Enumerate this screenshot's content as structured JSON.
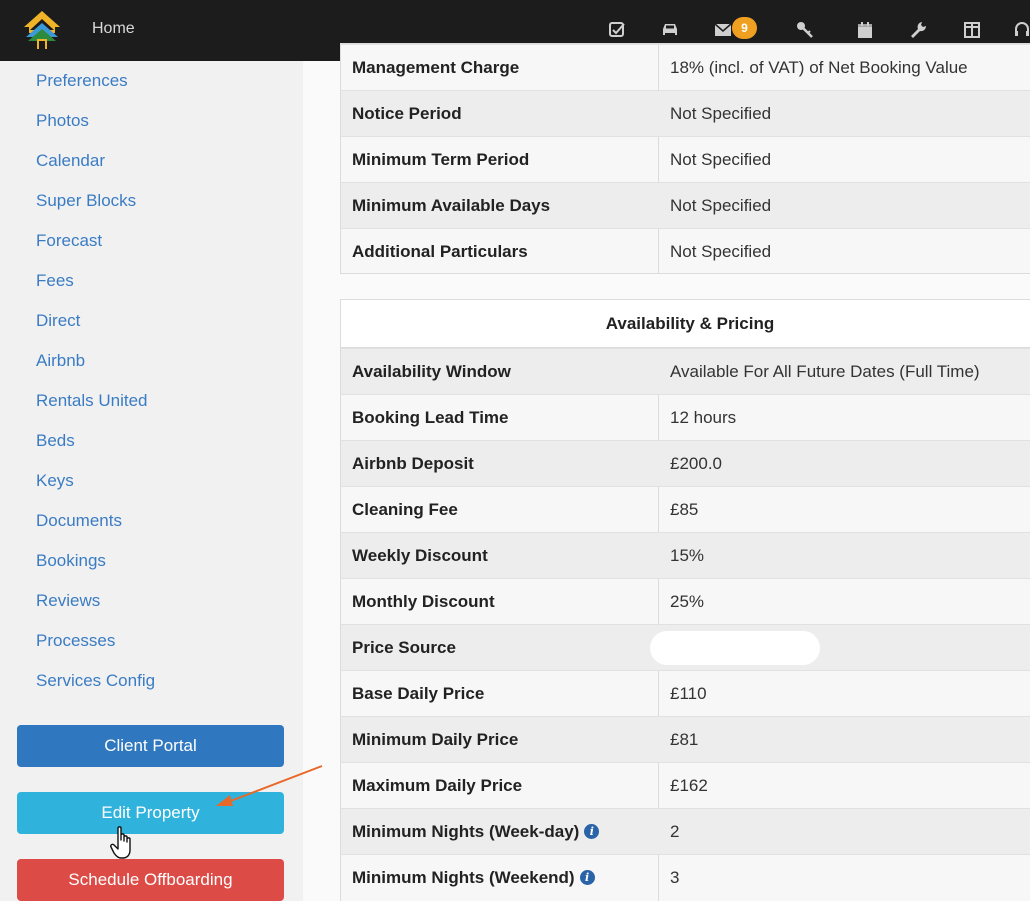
{
  "header": {
    "home_label": "Home",
    "mail_count": "9",
    "icons": [
      "checkbox-icon",
      "car-icon",
      "mail-icon",
      "keys-icon",
      "calendar-icon",
      "wrench-icon",
      "columns-icon",
      "headset-icon"
    ]
  },
  "sidebar": {
    "items": [
      {
        "label": "Preferences"
      },
      {
        "label": "Photos"
      },
      {
        "label": "Calendar"
      },
      {
        "label": "Super Blocks"
      },
      {
        "label": "Forecast"
      },
      {
        "label": "Fees"
      },
      {
        "label": "Direct"
      },
      {
        "label": "Airbnb"
      },
      {
        "label": "Rentals United"
      },
      {
        "label": "Beds"
      },
      {
        "label": "Keys"
      },
      {
        "label": "Documents"
      },
      {
        "label": "Bookings"
      },
      {
        "label": "Reviews"
      },
      {
        "label": "Processes"
      },
      {
        "label": "Services Config"
      }
    ],
    "client_portal_label": "Client Portal",
    "edit_property_label": "Edit Property",
    "schedule_offboarding_label": "Schedule Offboarding"
  },
  "terms_table": {
    "rows": [
      {
        "label": "Management Charge",
        "value": "18% (incl. of VAT) of Net Booking Value"
      },
      {
        "label": "Notice Period",
        "value": "Not Specified"
      },
      {
        "label": "Minimum Term Period",
        "value": "Not Specified"
      },
      {
        "label": "Minimum Available Days",
        "value": "Not Specified"
      },
      {
        "label": "Additional Particulars",
        "value": "Not Specified"
      }
    ]
  },
  "pricing_table": {
    "title": "Availability & Pricing",
    "rows": [
      {
        "label": "Availability Window",
        "value": "Available For All Future Dates (Full Time)"
      },
      {
        "label": "Booking Lead Time",
        "value": "12 hours"
      },
      {
        "label": "Airbnb Deposit",
        "value": "£200.0"
      },
      {
        "label": "Cleaning Fee",
        "value": "£85"
      },
      {
        "label": "Weekly Discount",
        "value": "15%"
      },
      {
        "label": "Monthly Discount",
        "value": "25%"
      },
      {
        "label": "Price Source",
        "value": ""
      },
      {
        "label": "Base Daily Price",
        "value": "£110"
      },
      {
        "label": "Minimum Daily Price",
        "value": "£81"
      },
      {
        "label": "Maximum Daily Price",
        "value": "£162"
      },
      {
        "label": "Minimum Nights (Week-day)",
        "value": "2"
      },
      {
        "label": "Minimum Nights (Weekend)",
        "value": "3"
      }
    ]
  },
  "colors": {
    "topbar": "#1c1c1c",
    "link": "#3a7cc4",
    "client_portal": "#2f77be",
    "edit_property": "#2fb3dc",
    "schedule_offboarding": "#dc4b46",
    "annotation_arrow": "#e8682a",
    "mail_badge": "#f0a020"
  }
}
